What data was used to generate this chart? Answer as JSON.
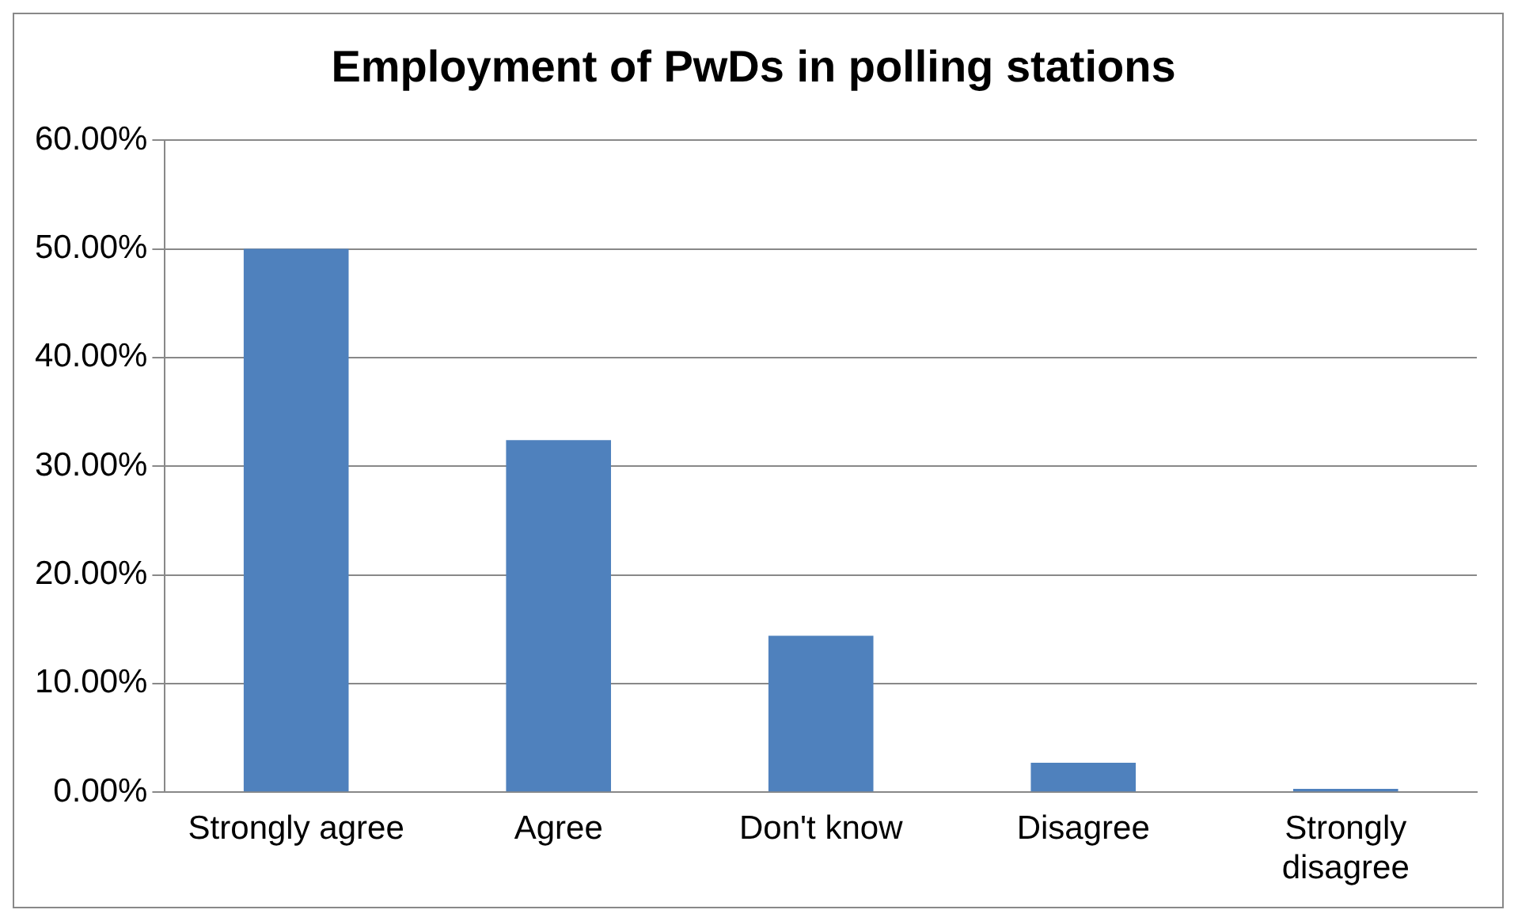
{
  "chart_data": {
    "type": "bar",
    "title": "Employment of PwDs in polling stations",
    "categories": [
      "Strongly agree",
      "Agree",
      "Don't know",
      "Disagree",
      "Strongly disagree"
    ],
    "values": [
      50,
      32.4,
      14.4,
      2.7,
      0.3
    ],
    "color": "#4f81bd",
    "ylim": [
      0,
      60
    ],
    "yticks": [
      {
        "value": 0,
        "label": "0.00%"
      },
      {
        "value": 10,
        "label": "10.00%"
      },
      {
        "value": 20,
        "label": "20.00%"
      },
      {
        "value": 30,
        "label": "30.00%"
      },
      {
        "value": 40,
        "label": "40.00%"
      },
      {
        "value": 50,
        "label": "50.00%"
      },
      {
        "value": 60,
        "label": "60.00%"
      }
    ],
    "grid": "y",
    "legend": false
  }
}
